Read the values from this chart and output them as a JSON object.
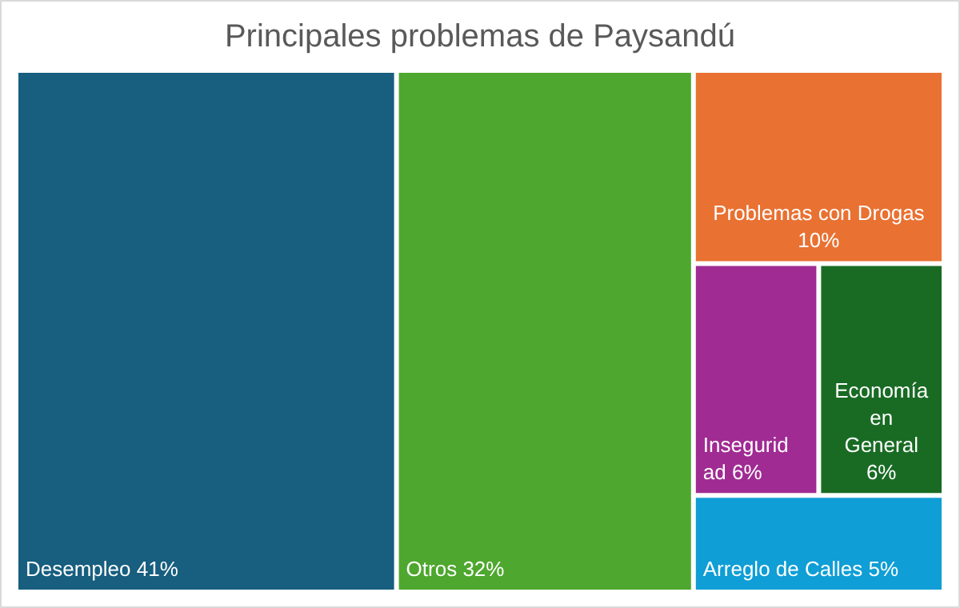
{
  "chart_data": {
    "type": "other",
    "title": "Principales problemas de Paysandú",
    "categories": [
      "Desempleo",
      "Otros",
      "Problemas con Drogas",
      "Inseguridad",
      "Economía en General",
      "Arreglo de Calles"
    ],
    "values": [
      41,
      32,
      10,
      6,
      6,
      5
    ],
    "value_labels": [
      "41%",
      "32%",
      "10%",
      "6%",
      "6%",
      "5%"
    ],
    "colors": [
      "#175e7f",
      "#4ea72e",
      "#e97132",
      "#a02b93",
      "#196b24",
      "#0f9ed5"
    ]
  }
}
